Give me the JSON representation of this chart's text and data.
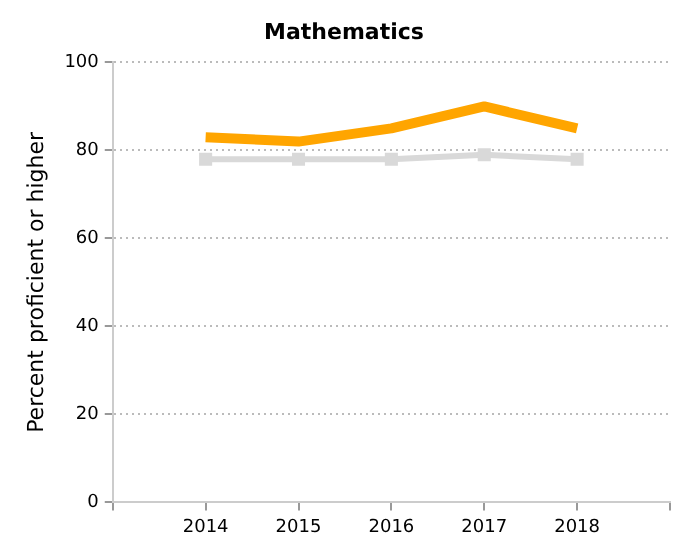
{
  "chart_data": {
    "type": "line",
    "title": "Mathematics",
    "ylabel": "Percent proficient or higher",
    "x": [
      2014,
      2015,
      2016,
      2017,
      2018
    ],
    "xlim": [
      2013,
      2019
    ],
    "xticks": [
      {
        "value": 2013,
        "label": null
      },
      2014,
      2015,
      2016,
      2017,
      2018,
      {
        "value": 2019,
        "label": null
      }
    ],
    "ylim": [
      0,
      100
    ],
    "yticks": [
      0,
      20,
      40,
      60,
      80,
      100
    ],
    "grid": "y",
    "legend": false,
    "series": [
      {
        "color": "#d9d9d9",
        "values": [
          78,
          78,
          78,
          79,
          78
        ],
        "marker": "square"
      },
      {
        "color": "#ffa500",
        "values": [
          83,
          82,
          85,
          90,
          85
        ],
        "marker": "none"
      }
    ]
  }
}
